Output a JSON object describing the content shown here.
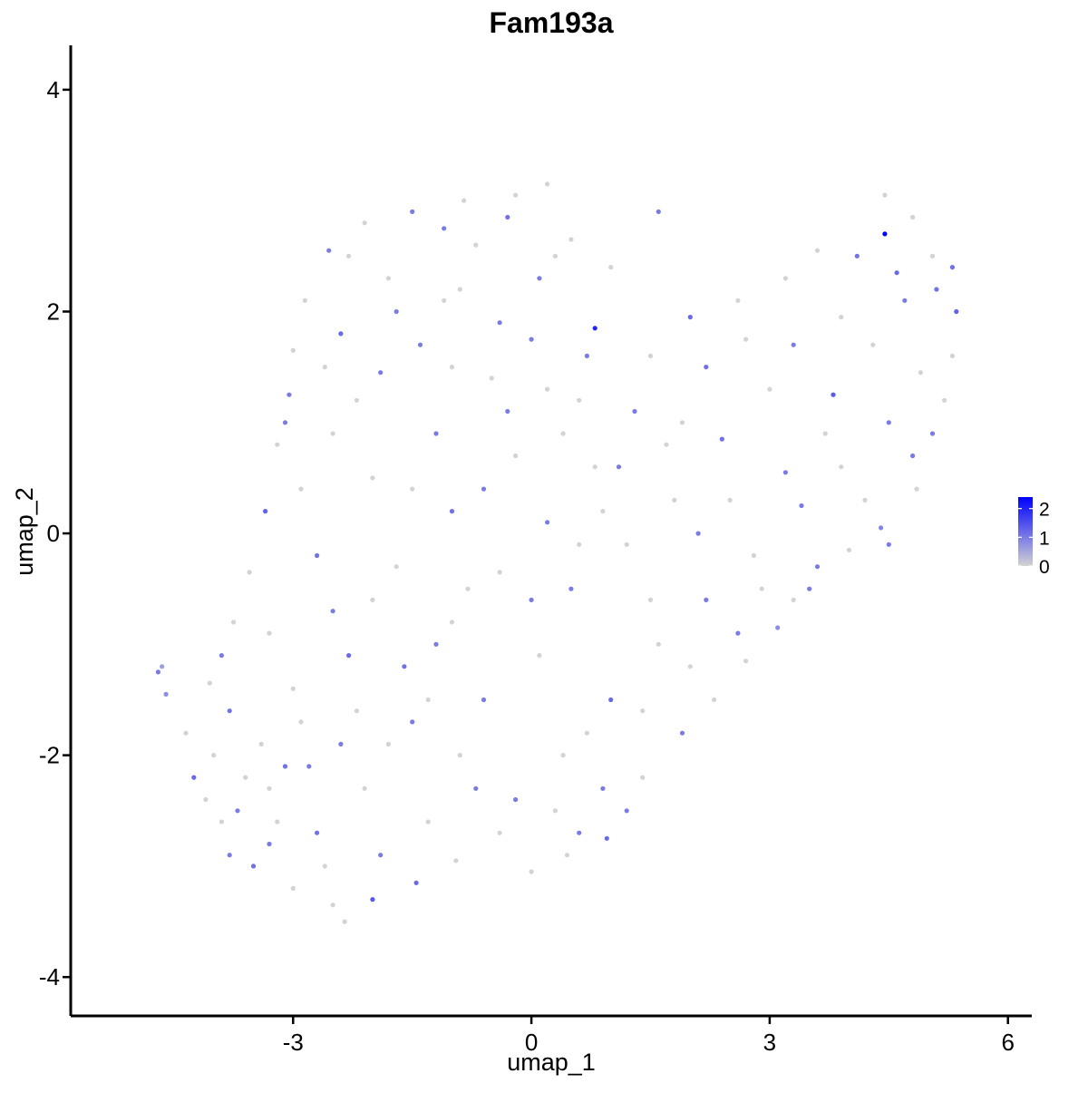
{
  "chart_data": {
    "type": "scatter",
    "title": "Fam193a",
    "xlabel": "umap_1",
    "ylabel": "umap_2",
    "xlim": [
      -5.8,
      6.3
    ],
    "ylim": [
      -4.35,
      4.4
    ],
    "x_ticks": [
      -3,
      0,
      3,
      6
    ],
    "y_ticks": [
      -4,
      -2,
      0,
      2,
      4
    ],
    "x_tick_labels": [
      "-3",
      "0",
      "3",
      "6"
    ],
    "y_tick_labels": [
      "-4",
      "-2",
      "0",
      "2",
      "4"
    ],
    "grid": false,
    "legend": {
      "placement": "right",
      "type": "continuous",
      "color_low": "#d3d3d3",
      "color_high": "#0000ff",
      "range": [
        0,
        2.4
      ],
      "ticks": [
        0,
        1,
        2
      ],
      "tick_labels": [
        "0",
        "1",
        "2"
      ]
    },
    "points": [
      [
        -4.7,
        -1.25,
        1.0
      ],
      [
        -4.65,
        -1.2,
        0.6
      ],
      [
        -4.6,
        -1.45,
        0.8
      ],
      [
        -4.35,
        -1.8,
        0.0
      ],
      [
        -4.25,
        -2.2,
        1.2
      ],
      [
        -3.9,
        -2.6,
        0.0
      ],
      [
        -3.8,
        -2.9,
        1.0
      ],
      [
        -3.5,
        -3.0,
        1.1
      ],
      [
        -3.3,
        -2.3,
        0.0
      ],
      [
        -3.0,
        -3.2,
        0.0
      ],
      [
        -2.5,
        -3.35,
        0.0
      ],
      [
        -2.35,
        -3.5,
        0.0
      ],
      [
        -2.0,
        -3.3,
        1.4
      ],
      [
        -1.45,
        -3.15,
        1.2
      ],
      [
        -0.95,
        -2.95,
        0.0
      ],
      [
        -0.4,
        -2.7,
        0.0
      ],
      [
        0.0,
        -3.05,
        0.0
      ],
      [
        0.45,
        -2.9,
        0.0
      ],
      [
        0.6,
        -2.7,
        1.0
      ],
      [
        0.95,
        -2.75,
        1.2
      ],
      [
        1.4,
        -2.2,
        0.0
      ],
      [
        1.9,
        -1.8,
        1.0
      ],
      [
        2.3,
        -1.5,
        0.0
      ],
      [
        2.7,
        -1.15,
        0.0
      ],
      [
        3.1,
        -0.85,
        0.8
      ],
      [
        3.3,
        -0.6,
        0.0
      ],
      [
        3.6,
        -0.3,
        1.0
      ],
      [
        4.0,
        -0.15,
        0.0
      ],
      [
        4.4,
        0.05,
        0.9
      ],
      [
        4.85,
        0.4,
        0.0
      ],
      [
        5.05,
        0.9,
        1.0
      ],
      [
        5.3,
        1.6,
        0.0
      ],
      [
        5.35,
        2.0,
        1.3
      ],
      [
        5.3,
        2.4,
        1.1
      ],
      [
        5.05,
        2.5,
        0.0
      ],
      [
        4.8,
        2.85,
        0.0
      ],
      [
        4.45,
        3.05,
        0.0
      ],
      [
        4.45,
        2.7,
        2.4
      ],
      [
        4.1,
        2.5,
        1.1
      ],
      [
        3.6,
        2.55,
        0.0
      ],
      [
        3.2,
        2.3,
        0.0
      ],
      [
        2.6,
        2.1,
        0.0
      ],
      [
        2.0,
        1.95,
        1.2
      ],
      [
        1.5,
        1.6,
        0.0
      ],
      [
        0.8,
        1.85,
        2.0
      ],
      [
        0.3,
        2.5,
        0.0
      ],
      [
        0.2,
        3.15,
        0.0
      ],
      [
        -0.2,
        3.05,
        0.0
      ],
      [
        -0.85,
        3.0,
        0.0
      ],
      [
        -1.5,
        2.9,
        1.0
      ],
      [
        -2.1,
        2.8,
        0.0
      ],
      [
        -2.55,
        2.55,
        1.0
      ],
      [
        -2.85,
        2.1,
        0.0
      ],
      [
        -3.0,
        1.65,
        0.0
      ],
      [
        -3.05,
        1.25,
        1.0
      ],
      [
        -3.2,
        0.8,
        0.0
      ],
      [
        -3.35,
        0.2,
        1.3
      ],
      [
        -3.55,
        -0.35,
        0.0
      ],
      [
        -3.75,
        -0.8,
        0.0
      ],
      [
        -4.05,
        -1.35,
        0.0
      ],
      [
        -3.8,
        -1.6,
        1.1
      ],
      [
        -3.4,
        -1.9,
        0.0
      ],
      [
        -2.8,
        -2.1,
        1.0
      ],
      [
        -2.2,
        -1.6,
        0.0
      ],
      [
        -1.6,
        -1.2,
        1.1
      ],
      [
        -1.0,
        -0.8,
        0.0
      ],
      [
        -0.4,
        -0.35,
        0.0
      ],
      [
        0.2,
        0.1,
        1.0
      ],
      [
        0.8,
        0.6,
        0.0
      ],
      [
        1.3,
        1.1,
        1.0
      ],
      [
        -0.5,
        1.4,
        0.0
      ],
      [
        -1.2,
        0.9,
        1.0
      ],
      [
        -2.0,
        0.5,
        0.0
      ],
      [
        -2.4,
        1.8,
        1.2
      ],
      [
        -1.8,
        2.3,
        0.0
      ],
      [
        -0.9,
        2.2,
        0.0
      ],
      [
        0.0,
        1.75,
        1.0
      ],
      [
        0.6,
        1.2,
        0.0
      ],
      [
        1.9,
        1.0,
        0.0
      ],
      [
        2.4,
        0.85,
        1.1
      ],
      [
        3.0,
        1.3,
        0.0
      ],
      [
        3.8,
        1.25,
        1.4
      ],
      [
        4.3,
        1.7,
        0.0
      ],
      [
        4.7,
        2.1,
        1.0
      ],
      [
        4.9,
        1.45,
        0.0
      ],
      [
        4.5,
        1.0,
        1.0
      ],
      [
        3.9,
        0.6,
        0.0
      ],
      [
        3.4,
        0.25,
        1.0
      ],
      [
        2.8,
        -0.2,
        0.0
      ],
      [
        2.2,
        -0.6,
        1.0
      ],
      [
        1.6,
        -1.0,
        0.0
      ],
      [
        1.0,
        -1.5,
        1.2
      ],
      [
        0.4,
        -2.0,
        0.0
      ],
      [
        -0.2,
        -2.4,
        1.0
      ],
      [
        -0.9,
        -2.0,
        0.0
      ],
      [
        -1.5,
        -1.7,
        1.0
      ],
      [
        -2.1,
        -2.3,
        0.0
      ],
      [
        -2.7,
        -2.7,
        1.1
      ],
      [
        -3.2,
        -2.6,
        0.0
      ],
      [
        -2.5,
        -0.7,
        1.0
      ],
      [
        -1.7,
        -0.3,
        0.0
      ],
      [
        -1.0,
        0.2,
        1.1
      ],
      [
        -0.2,
        0.7,
        0.0
      ],
      [
        0.5,
        -0.5,
        1.0
      ],
      [
        1.2,
        -0.1,
        0.0
      ],
      [
        1.8,
        0.3,
        0.0
      ],
      [
        -2.9,
        0.4,
        0.0
      ],
      [
        -2.2,
        1.2,
        0.0
      ],
      [
        -1.4,
        1.7,
        1.0
      ],
      [
        -0.7,
        2.6,
        0.0
      ],
      [
        0.1,
        2.3,
        1.0
      ],
      [
        0.9,
        0.2,
        0.0
      ],
      [
        1.5,
        -0.6,
        0.0
      ],
      [
        2.0,
        -1.2,
        0.0
      ],
      [
        2.6,
        -0.9,
        1.0
      ],
      [
        -3.6,
        -2.2,
        0.0
      ],
      [
        -3.0,
        -1.4,
        0.0
      ],
      [
        -2.3,
        -1.1,
        1.2
      ],
      [
        -1.3,
        -2.6,
        0.0
      ],
      [
        -0.6,
        -1.5,
        1.0
      ],
      [
        0.1,
        -1.1,
        0.0
      ],
      [
        0.7,
        -1.8,
        0.0
      ],
      [
        1.2,
        -2.5,
        1.0
      ],
      [
        -1.9,
        -2.9,
        1.0
      ],
      [
        -2.6,
        -3.0,
        0.0
      ],
      [
        -3.3,
        -2.8,
        1.0
      ],
      [
        -4.0,
        -2.0,
        0.0
      ],
      [
        -3.9,
        -1.1,
        1.0
      ],
      [
        -3.3,
        -0.9,
        0.0
      ],
      [
        -2.7,
        -0.2,
        1.1
      ],
      [
        -2.0,
        -0.6,
        0.0
      ],
      [
        -1.3,
        -1.5,
        0.0
      ],
      [
        -0.7,
        -2.3,
        1.0
      ],
      [
        0.3,
        -2.5,
        0.0
      ],
      [
        0.9,
        -2.3,
        1.0
      ],
      [
        1.4,
        -1.6,
        0.0
      ],
      [
        1.1,
        0.6,
        1.0
      ],
      [
        0.4,
        0.9,
        0.0
      ],
      [
        -0.3,
        1.1,
        1.0
      ],
      [
        -1.0,
        1.5,
        0.0
      ],
      [
        -1.7,
        2.0,
        1.0
      ],
      [
        -2.3,
        2.5,
        0.0
      ],
      [
        -1.1,
        2.75,
        1.0
      ],
      [
        -0.3,
        2.85,
        1.1
      ],
      [
        0.5,
        2.65,
        0.0
      ],
      [
        1.0,
        2.4,
        0.0
      ],
      [
        1.6,
        2.9,
        1.0
      ],
      [
        2.2,
        1.5,
        1.1
      ],
      [
        2.7,
        1.75,
        0.0
      ],
      [
        3.3,
        1.7,
        1.0
      ],
      [
        3.9,
        1.95,
        0.0
      ],
      [
        4.6,
        2.35,
        1.2
      ],
      [
        5.1,
        2.2,
        1.1
      ],
      [
        5.2,
        1.2,
        0.0
      ],
      [
        4.8,
        0.7,
        1.0
      ],
      [
        4.2,
        0.3,
        0.0
      ],
      [
        3.7,
        0.9,
        0.0
      ],
      [
        3.2,
        0.55,
        1.0
      ],
      [
        2.5,
        0.3,
        0.0
      ],
      [
        2.1,
        0.0,
        1.0
      ],
      [
        1.7,
        0.8,
        0.0
      ],
      [
        2.9,
        -0.5,
        0.0
      ],
      [
        3.5,
        -0.5,
        1.0
      ],
      [
        4.5,
        -0.1,
        1.0
      ],
      [
        -4.1,
        -2.4,
        0.0
      ],
      [
        -3.7,
        -2.5,
        1.0
      ],
      [
        -3.1,
        -2.1,
        1.1
      ],
      [
        -2.9,
        -1.7,
        0.0
      ],
      [
        -2.4,
        -1.9,
        1.0
      ],
      [
        -1.8,
        -1.9,
        0.0
      ],
      [
        -1.2,
        -1.0,
        1.0
      ],
      [
        -0.8,
        -0.5,
        0.0
      ],
      [
        0.0,
        -0.6,
        1.0
      ],
      [
        0.6,
        -0.1,
        0.0
      ],
      [
        -0.6,
        0.4,
        1.0
      ],
      [
        -1.5,
        0.4,
        0.0
      ],
      [
        -2.5,
        0.9,
        0.0
      ],
      [
        -3.1,
        1.0,
        1.0
      ],
      [
        -2.6,
        1.5,
        0.0
      ],
      [
        -1.9,
        1.45,
        1.0
      ],
      [
        -1.1,
        2.1,
        0.0
      ],
      [
        -0.4,
        1.9,
        1.0
      ],
      [
        0.2,
        1.3,
        0.0
      ],
      [
        0.7,
        1.6,
        1.0
      ]
    ]
  }
}
